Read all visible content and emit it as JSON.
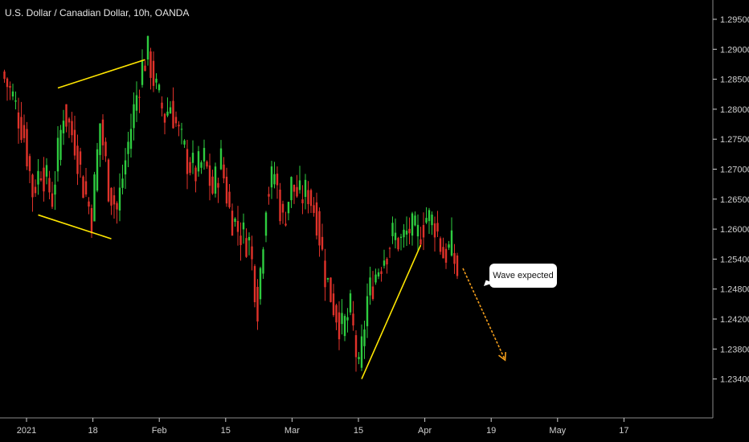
{
  "title": "U.S. Dollar / Canadian Dollar, 10h, OANDA",
  "callout": {
    "text": "Wave expected"
  },
  "colors": {
    "up": "#2ecc40",
    "down": "#e0322a",
    "pattern": "#ffe600",
    "projection": "#f29d1b",
    "axis": "#cfcfcf"
  },
  "chart_data": {
    "type": "candlestick",
    "title": "U.S. Dollar / Canadian Dollar, 10h, OANDA",
    "ylim": [
      1.231,
      1.2975
    ],
    "y_ticks": [
      "1.29500",
      "1.29000",
      "1.28500",
      "1.28000",
      "1.27500",
      "1.27000",
      "1.26500",
      "1.26000",
      "1.25400",
      "1.24800",
      "1.24200",
      "1.23800",
      "1.23400"
    ],
    "x_ticks": [
      "2021",
      "18",
      "Feb",
      "15",
      "Mar",
      "15",
      "Apr",
      "19",
      "May",
      "17"
    ],
    "path_close": [
      [
        0,
        1.286
      ],
      [
        4,
        1.282
      ],
      [
        8,
        1.276
      ],
      [
        11,
        1.267
      ],
      [
        14,
        1.271
      ],
      [
        18,
        1.266
      ],
      [
        22,
        1.28
      ],
      [
        26,
        1.275
      ],
      [
        29,
        1.268
      ],
      [
        32,
        1.263
      ],
      [
        35,
        1.278
      ],
      [
        38,
        1.268
      ],
      [
        41,
        1.264
      ],
      [
        44,
        1.272
      ],
      [
        47,
        1.28
      ],
      [
        50,
        1.287
      ],
      [
        52,
        1.289
      ],
      [
        55,
        1.283
      ],
      [
        58,
        1.279
      ],
      [
        60,
        1.281
      ],
      [
        63,
        1.276
      ],
      [
        66,
        1.272
      ],
      [
        69,
        1.27
      ],
      [
        72,
        1.272
      ],
      [
        75,
        1.267
      ],
      [
        78,
        1.272
      ],
      [
        81,
        1.264
      ],
      [
        84,
        1.261
      ],
      [
        88,
        1.259
      ],
      [
        91,
        1.249
      ],
      [
        94,
        1.266
      ],
      [
        97,
        1.27
      ],
      [
        100,
        1.262
      ],
      [
        103,
        1.268
      ],
      [
        106,
        1.266
      ],
      [
        109,
        1.267
      ],
      [
        112,
        1.263
      ],
      [
        115,
        1.254
      ],
      [
        118,
        1.249
      ],
      [
        121,
        1.245
      ],
      [
        124,
        1.248
      ],
      [
        127,
        1.238
      ],
      [
        130,
        1.25
      ],
      [
        133,
        1.254
      ],
      [
        136,
        1.257
      ],
      [
        139,
        1.26
      ],
      [
        142,
        1.259
      ],
      [
        145,
        1.261
      ],
      [
        148,
        1.26
      ],
      [
        151,
        1.263
      ],
      [
        154,
        1.262
      ],
      [
        157,
        1.257
      ],
      [
        160,
        1.258
      ],
      [
        162,
        1.254
      ]
    ],
    "patterns": [
      {
        "points": [
          [
            20,
            1.2835
          ],
          [
            51,
            1.288
          ]
        ]
      },
      {
        "points": [
          [
            13,
            1.2633
          ],
          [
            39,
            1.2595
          ]
        ]
      },
      {
        "points": [
          [
            128,
            1.2372
          ],
          [
            149,
            1.2585
          ]
        ]
      }
    ],
    "projection": {
      "from": [
        164,
        1.2548
      ],
      "to": [
        179,
        1.2402
      ]
    }
  }
}
